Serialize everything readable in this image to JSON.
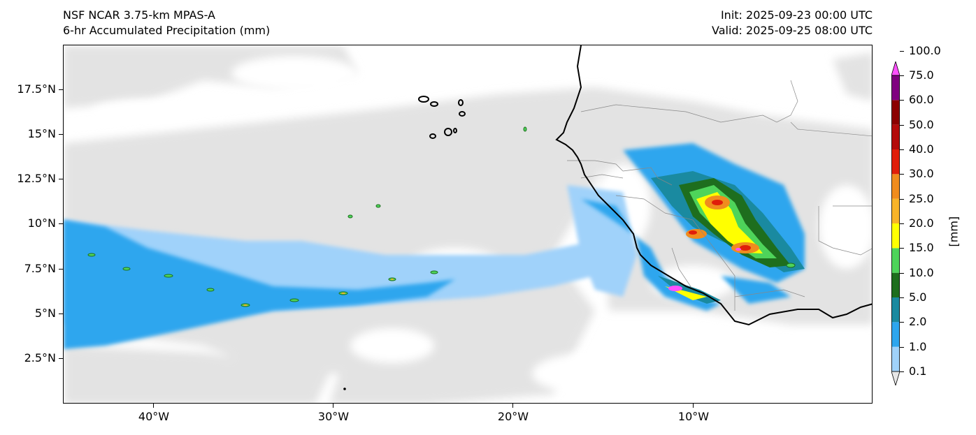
{
  "header": {
    "model": "NSF NCAR 3.75-km MPAS-A",
    "field": "6-hr Accumulated Precipitation (mm)",
    "init": "Init: 2025-09-23 00:00 UTC",
    "valid": "Valid: 2025-09-25 08:00 UTC"
  },
  "map": {
    "lon_range": [
      -45,
      0
    ],
    "lat_range": [
      0,
      20
    ],
    "y_ticks": [
      {
        "lat": 17.5,
        "label": "17.5°N"
      },
      {
        "lat": 15,
        "label": "15°N"
      },
      {
        "lat": 12.5,
        "label": "12.5°N"
      },
      {
        "lat": 10,
        "label": "10°N"
      },
      {
        "lat": 7.5,
        "label": "7.5°N"
      },
      {
        "lat": 5,
        "label": "5°N"
      },
      {
        "lat": 2.5,
        "label": "2.5°N"
      }
    ],
    "x_ticks": [
      {
        "lon": -40,
        "label": "40°W"
      },
      {
        "lon": -30,
        "label": "30°W"
      },
      {
        "lon": -20,
        "label": "20°W"
      },
      {
        "lon": -10,
        "label": "10°W"
      }
    ]
  },
  "colorbar": {
    "unit": "[mm]",
    "levels": [
      "0.1",
      "1.0",
      "2.0",
      "5.0",
      "10.0",
      "15.0",
      "20.0",
      "25.0",
      "30.0",
      "40.0",
      "50.0",
      "60.0",
      "75.0",
      "100.0"
    ],
    "colors": [
      "#e6e6e6",
      "#a0d2fa",
      "#2ea6ee",
      "#1a8aa0",
      "#1e6e1e",
      "#4ed45a",
      "#ffff00",
      "#f8b428",
      "#f08c1e",
      "#e01e0a",
      "#b40a0a",
      "#8c0000",
      "#800080",
      "#ff50ff"
    ]
  }
}
